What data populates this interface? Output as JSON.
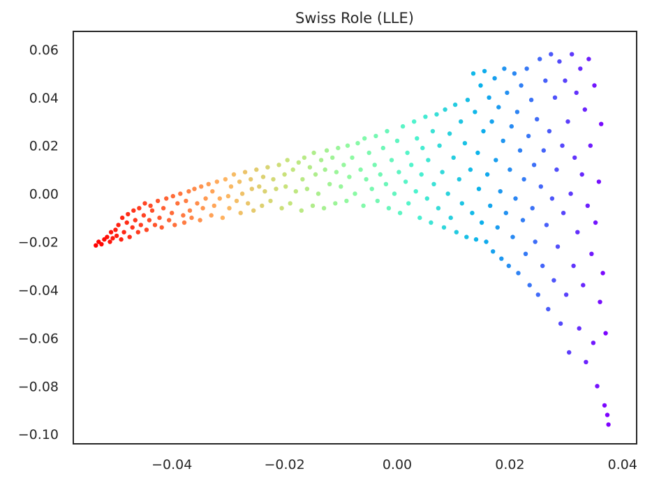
{
  "chart_data": {
    "type": "scatter",
    "title": "Swiss Role (LLE)",
    "xlabel": "",
    "ylabel": "",
    "xlim": [
      -0.0575,
      0.0425
    ],
    "ylim": [
      -0.104,
      0.0675
    ],
    "grid": false,
    "legend": "none",
    "colormap": "rainbow",
    "colormap_stops": [
      "#7f00ff",
      "#4662f9",
      "#0ab1eb",
      "#4df3ce",
      "#8dfaa2",
      "#c6e47c",
      "#ffb360",
      "#ff5a2f",
      "#ff0000"
    ],
    "x_ticks": [
      -0.04,
      -0.02,
      0.0,
      0.02,
      0.04
    ],
    "x_tick_labels": [
      "−0.04",
      "−0.02",
      "0.00",
      "0.02",
      "0.04"
    ],
    "y_ticks": [
      0.06,
      0.04,
      0.02,
      0.0,
      -0.02,
      -0.04,
      -0.06,
      -0.08,
      -0.1
    ],
    "y_tick_labels": [
      "0.06",
      "0.04",
      "0.02",
      "0.00",
      "−0.02",
      "−0.04",
      "−0.06",
      "−0.08",
      "−0.10"
    ],
    "points": [
      [
        -0.0535,
        -0.0215
      ],
      [
        -0.053,
        -0.02
      ],
      [
        -0.0525,
        -0.021
      ],
      [
        -0.052,
        -0.019
      ],
      [
        -0.0515,
        -0.018
      ],
      [
        -0.051,
        -0.02
      ],
      [
        -0.0508,
        -0.016
      ],
      [
        -0.0505,
        -0.0185
      ],
      [
        -0.05,
        -0.015
      ],
      [
        -0.0498,
        -0.0175
      ],
      [
        -0.0495,
        -0.013
      ],
      [
        -0.049,
        -0.019
      ],
      [
        -0.0488,
        -0.01
      ],
      [
        -0.0485,
        -0.016
      ],
      [
        -0.048,
        -0.012
      ],
      [
        -0.0478,
        -0.0085
      ],
      [
        -0.0475,
        -0.018
      ],
      [
        -0.047,
        -0.014
      ],
      [
        -0.0468,
        -0.007
      ],
      [
        -0.0465,
        -0.011
      ],
      [
        -0.046,
        -0.016
      ],
      [
        -0.0458,
        -0.006
      ],
      [
        -0.0455,
        -0.013
      ],
      [
        -0.045,
        -0.009
      ],
      [
        -0.0448,
        -0.004
      ],
      [
        -0.0445,
        -0.015
      ],
      [
        -0.044,
        -0.011
      ],
      [
        -0.0438,
        -0.005
      ],
      [
        -0.0435,
        -0.007
      ],
      [
        -0.043,
        -0.013
      ],
      [
        -0.0425,
        -0.003
      ],
      [
        -0.0422,
        -0.01
      ],
      [
        -0.0418,
        -0.014
      ],
      [
        -0.0415,
        -0.006
      ],
      [
        -0.041,
        -0.002
      ],
      [
        -0.0405,
        -0.011
      ],
      [
        -0.04,
        -0.008
      ],
      [
        -0.0398,
        -0.001
      ],
      [
        -0.0395,
        -0.013
      ],
      [
        -0.039,
        -0.004
      ],
      [
        -0.0385,
        0.0
      ],
      [
        -0.038,
        -0.009
      ],
      [
        -0.0378,
        -0.012
      ],
      [
        -0.0375,
        -0.003
      ],
      [
        -0.037,
        0.001
      ],
      [
        -0.0368,
        -0.007
      ],
      [
        -0.0365,
        -0.01
      ],
      [
        -0.036,
        0.002
      ],
      [
        -0.0355,
        -0.004
      ],
      [
        -0.035,
        -0.011
      ],
      [
        -0.0348,
        0.003
      ],
      [
        -0.0345,
        -0.006
      ],
      [
        -0.034,
        -0.002
      ],
      [
        -0.0335,
        0.004
      ],
      [
        -0.033,
        -0.009
      ],
      [
        -0.0328,
        0.001
      ],
      [
        -0.0325,
        -0.005
      ],
      [
        -0.032,
        0.005
      ],
      [
        -0.0315,
        -0.002
      ],
      [
        -0.031,
        -0.01
      ],
      [
        -0.0305,
        0.006
      ],
      [
        -0.03,
        -0.001
      ],
      [
        -0.0298,
        -0.006
      ],
      [
        -0.0295,
        0.003
      ],
      [
        -0.029,
        0.008
      ],
      [
        -0.0285,
        -0.003
      ],
      [
        -0.028,
        0.005
      ],
      [
        -0.0278,
        -0.008
      ],
      [
        -0.0275,
        0.0
      ],
      [
        -0.027,
        0.009
      ],
      [
        -0.0265,
        -0.004
      ],
      [
        -0.026,
        0.006
      ],
      [
        -0.0258,
        0.002
      ],
      [
        -0.0255,
        -0.007
      ],
      [
        -0.025,
        0.01
      ],
      [
        -0.0245,
        0.003
      ],
      [
        -0.024,
        -0.005
      ],
      [
        -0.0238,
        0.007
      ],
      [
        -0.0235,
        0.001
      ],
      [
        -0.023,
        0.011
      ],
      [
        -0.0225,
        -0.003
      ],
      [
        -0.022,
        0.006
      ],
      [
        -0.0215,
        0.002
      ],
      [
        -0.021,
        0.012
      ],
      [
        -0.0205,
        -0.006
      ],
      [
        -0.02,
        0.008
      ],
      [
        -0.0198,
        0.003
      ],
      [
        -0.0195,
        0.014
      ],
      [
        -0.019,
        -0.004
      ],
      [
        -0.0185,
        0.01
      ],
      [
        -0.018,
        0.001
      ],
      [
        -0.0175,
        0.013
      ],
      [
        -0.017,
        -0.007
      ],
      [
        -0.0168,
        0.006
      ],
      [
        -0.0165,
        0.015
      ],
      [
        -0.016,
        0.002
      ],
      [
        -0.0155,
        0.011
      ],
      [
        -0.015,
        -0.005
      ],
      [
        -0.0148,
        0.017
      ],
      [
        -0.0145,
        0.008
      ],
      [
        -0.014,
        0.0
      ],
      [
        -0.0135,
        0.014
      ],
      [
        -0.013,
        -0.006
      ],
      [
        -0.0128,
        0.01
      ],
      [
        -0.0125,
        0.018
      ],
      [
        -0.012,
        0.004
      ],
      [
        -0.0115,
        0.015
      ],
      [
        -0.011,
        -0.004
      ],
      [
        -0.0108,
        0.009
      ],
      [
        -0.0105,
        0.019
      ],
      [
        -0.01,
        0.003
      ],
      [
        -0.0095,
        0.012
      ],
      [
        -0.009,
        -0.003
      ],
      [
        -0.0088,
        0.02
      ],
      [
        -0.0085,
        0.007
      ],
      [
        -0.008,
        0.015
      ],
      [
        -0.0075,
        0.0
      ],
      [
        -0.007,
        0.021
      ],
      [
        -0.0065,
        0.01
      ],
      [
        -0.006,
        -0.005
      ],
      [
        -0.0058,
        0.023
      ],
      [
        -0.0055,
        0.006
      ],
      [
        -0.005,
        0.017
      ],
      [
        -0.0045,
        0.002
      ],
      [
        -0.004,
        0.012
      ],
      [
        -0.0038,
        0.024
      ],
      [
        -0.0035,
        -0.003
      ],
      [
        -0.003,
        0.008
      ],
      [
        -0.0025,
        0.019
      ],
      [
        -0.002,
        0.004
      ],
      [
        -0.0018,
        0.026
      ],
      [
        -0.0015,
        -0.006
      ],
      [
        -0.001,
        0.014
      ],
      [
        -0.0005,
        0.0
      ],
      [
        0.0,
        0.022
      ],
      [
        0.0003,
        0.009
      ],
      [
        0.0005,
        -0.008
      ],
      [
        0.001,
        0.028
      ],
      [
        0.0015,
        0.005
      ],
      [
        0.0018,
        0.017
      ],
      [
        0.002,
        -0.004
      ],
      [
        0.0025,
        0.012
      ],
      [
        0.003,
        0.03
      ],
      [
        0.0033,
        0.001
      ],
      [
        0.0035,
        0.023
      ],
      [
        0.004,
        -0.01
      ],
      [
        0.0043,
        0.008
      ],
      [
        0.0045,
        0.019
      ],
      [
        0.005,
        0.032
      ],
      [
        0.0053,
        -0.002
      ],
      [
        0.0055,
        0.014
      ],
      [
        0.006,
        -0.012
      ],
      [
        0.0063,
        0.026
      ],
      [
        0.0065,
        0.004
      ],
      [
        0.007,
        0.033
      ],
      [
        0.0073,
        -0.006
      ],
      [
        0.0075,
        0.02
      ],
      [
        0.008,
        0.009
      ],
      [
        0.0083,
        -0.014
      ],
      [
        0.0085,
        0.035
      ],
      [
        0.009,
        0.0
      ],
      [
        0.0093,
        0.025
      ],
      [
        0.0095,
        -0.01
      ],
      [
        0.01,
        0.015
      ],
      [
        0.0103,
        0.037
      ],
      [
        0.0105,
        -0.016
      ],
      [
        0.011,
        0.006
      ],
      [
        0.0113,
        0.03
      ],
      [
        0.0115,
        -0.004
      ],
      [
        0.012,
        0.021
      ],
      [
        0.0123,
        -0.018
      ],
      [
        0.0125,
        0.039
      ],
      [
        0.013,
        0.01
      ],
      [
        0.0133,
        -0.008
      ],
      [
        0.0135,
        0.05
      ],
      [
        0.0138,
        0.034
      ],
      [
        0.014,
        -0.019
      ],
      [
        0.0143,
        0.017
      ],
      [
        0.0145,
        0.002
      ],
      [
        0.0148,
        0.045
      ],
      [
        0.015,
        -0.012
      ],
      [
        0.0153,
        0.026
      ],
      [
        0.0155,
        0.051
      ],
      [
        0.0158,
        -0.02
      ],
      [
        0.016,
        0.008
      ],
      [
        0.0163,
        0.04
      ],
      [
        0.0165,
        -0.005
      ],
      [
        0.0168,
        0.03
      ],
      [
        0.017,
        -0.024
      ],
      [
        0.0173,
        0.048
      ],
      [
        0.0175,
        0.014
      ],
      [
        0.0178,
        -0.014
      ],
      [
        0.018,
        0.036
      ],
      [
        0.0183,
        0.001
      ],
      [
        0.0185,
        -0.027
      ],
      [
        0.0188,
        0.022
      ],
      [
        0.019,
        0.052
      ],
      [
        0.0193,
        -0.008
      ],
      [
        0.0195,
        0.042
      ],
      [
        0.0198,
        -0.03
      ],
      [
        0.02,
        0.01
      ],
      [
        0.0203,
        0.028
      ],
      [
        0.0205,
        -0.018
      ],
      [
        0.0208,
        0.05
      ],
      [
        0.021,
        -0.002
      ],
      [
        0.0213,
        0.034
      ],
      [
        0.0215,
        -0.033
      ],
      [
        0.0218,
        0.018
      ],
      [
        0.022,
        0.045
      ],
      [
        0.0223,
        -0.011
      ],
      [
        0.0225,
        0.006
      ],
      [
        0.0228,
        -0.025
      ],
      [
        0.023,
        0.052
      ],
      [
        0.0233,
        0.024
      ],
      [
        0.0235,
        -0.038
      ],
      [
        0.0238,
        0.039
      ],
      [
        0.024,
        -0.006
      ],
      [
        0.0243,
        0.012
      ],
      [
        0.0245,
        -0.02
      ],
      [
        0.0248,
        0.031
      ],
      [
        0.025,
        -0.042
      ],
      [
        0.0253,
        0.056
      ],
      [
        0.0255,
        0.003
      ],
      [
        0.0258,
        -0.03
      ],
      [
        0.026,
        0.018
      ],
      [
        0.0263,
        0.047
      ],
      [
        0.0265,
        -0.013
      ],
      [
        0.0268,
        -0.048
      ],
      [
        0.027,
        0.026
      ],
      [
        0.0273,
        0.058
      ],
      [
        0.0275,
        -0.002
      ],
      [
        0.0278,
        -0.036
      ],
      [
        0.028,
        0.04
      ],
      [
        0.0283,
        0.01
      ],
      [
        0.0285,
        -0.022
      ],
      [
        0.0288,
        0.055
      ],
      [
        0.029,
        -0.054
      ],
      [
        0.0293,
        0.02
      ],
      [
        0.0295,
        -0.008
      ],
      [
        0.0298,
        0.047
      ],
      [
        0.03,
        -0.042
      ],
      [
        0.0303,
        0.03
      ],
      [
        0.0305,
        -0.066
      ],
      [
        0.0308,
        0.0
      ],
      [
        0.031,
        0.058
      ],
      [
        0.0313,
        -0.03
      ],
      [
        0.0315,
        0.015
      ],
      [
        0.0318,
        0.042
      ],
      [
        0.032,
        -0.016
      ],
      [
        0.0323,
        -0.056
      ],
      [
        0.0325,
        0.052
      ],
      [
        0.0328,
        0.008
      ],
      [
        0.033,
        -0.038
      ],
      [
        0.0333,
        0.035
      ],
      [
        0.0335,
        -0.07
      ],
      [
        0.0338,
        -0.005
      ],
      [
        0.034,
        0.056
      ],
      [
        0.0343,
        0.02
      ],
      [
        0.0345,
        -0.025
      ],
      [
        0.0348,
        -0.062
      ],
      [
        0.035,
        0.045
      ],
      [
        0.0352,
        -0.012
      ],
      [
        0.0355,
        -0.08
      ],
      [
        0.0358,
        0.005
      ],
      [
        0.036,
        -0.045
      ],
      [
        0.0362,
        0.029
      ],
      [
        0.0365,
        -0.033
      ],
      [
        0.0368,
        -0.088
      ],
      [
        0.037,
        -0.058
      ],
      [
        0.0373,
        -0.092
      ],
      [
        0.0375,
        -0.096
      ]
    ]
  }
}
